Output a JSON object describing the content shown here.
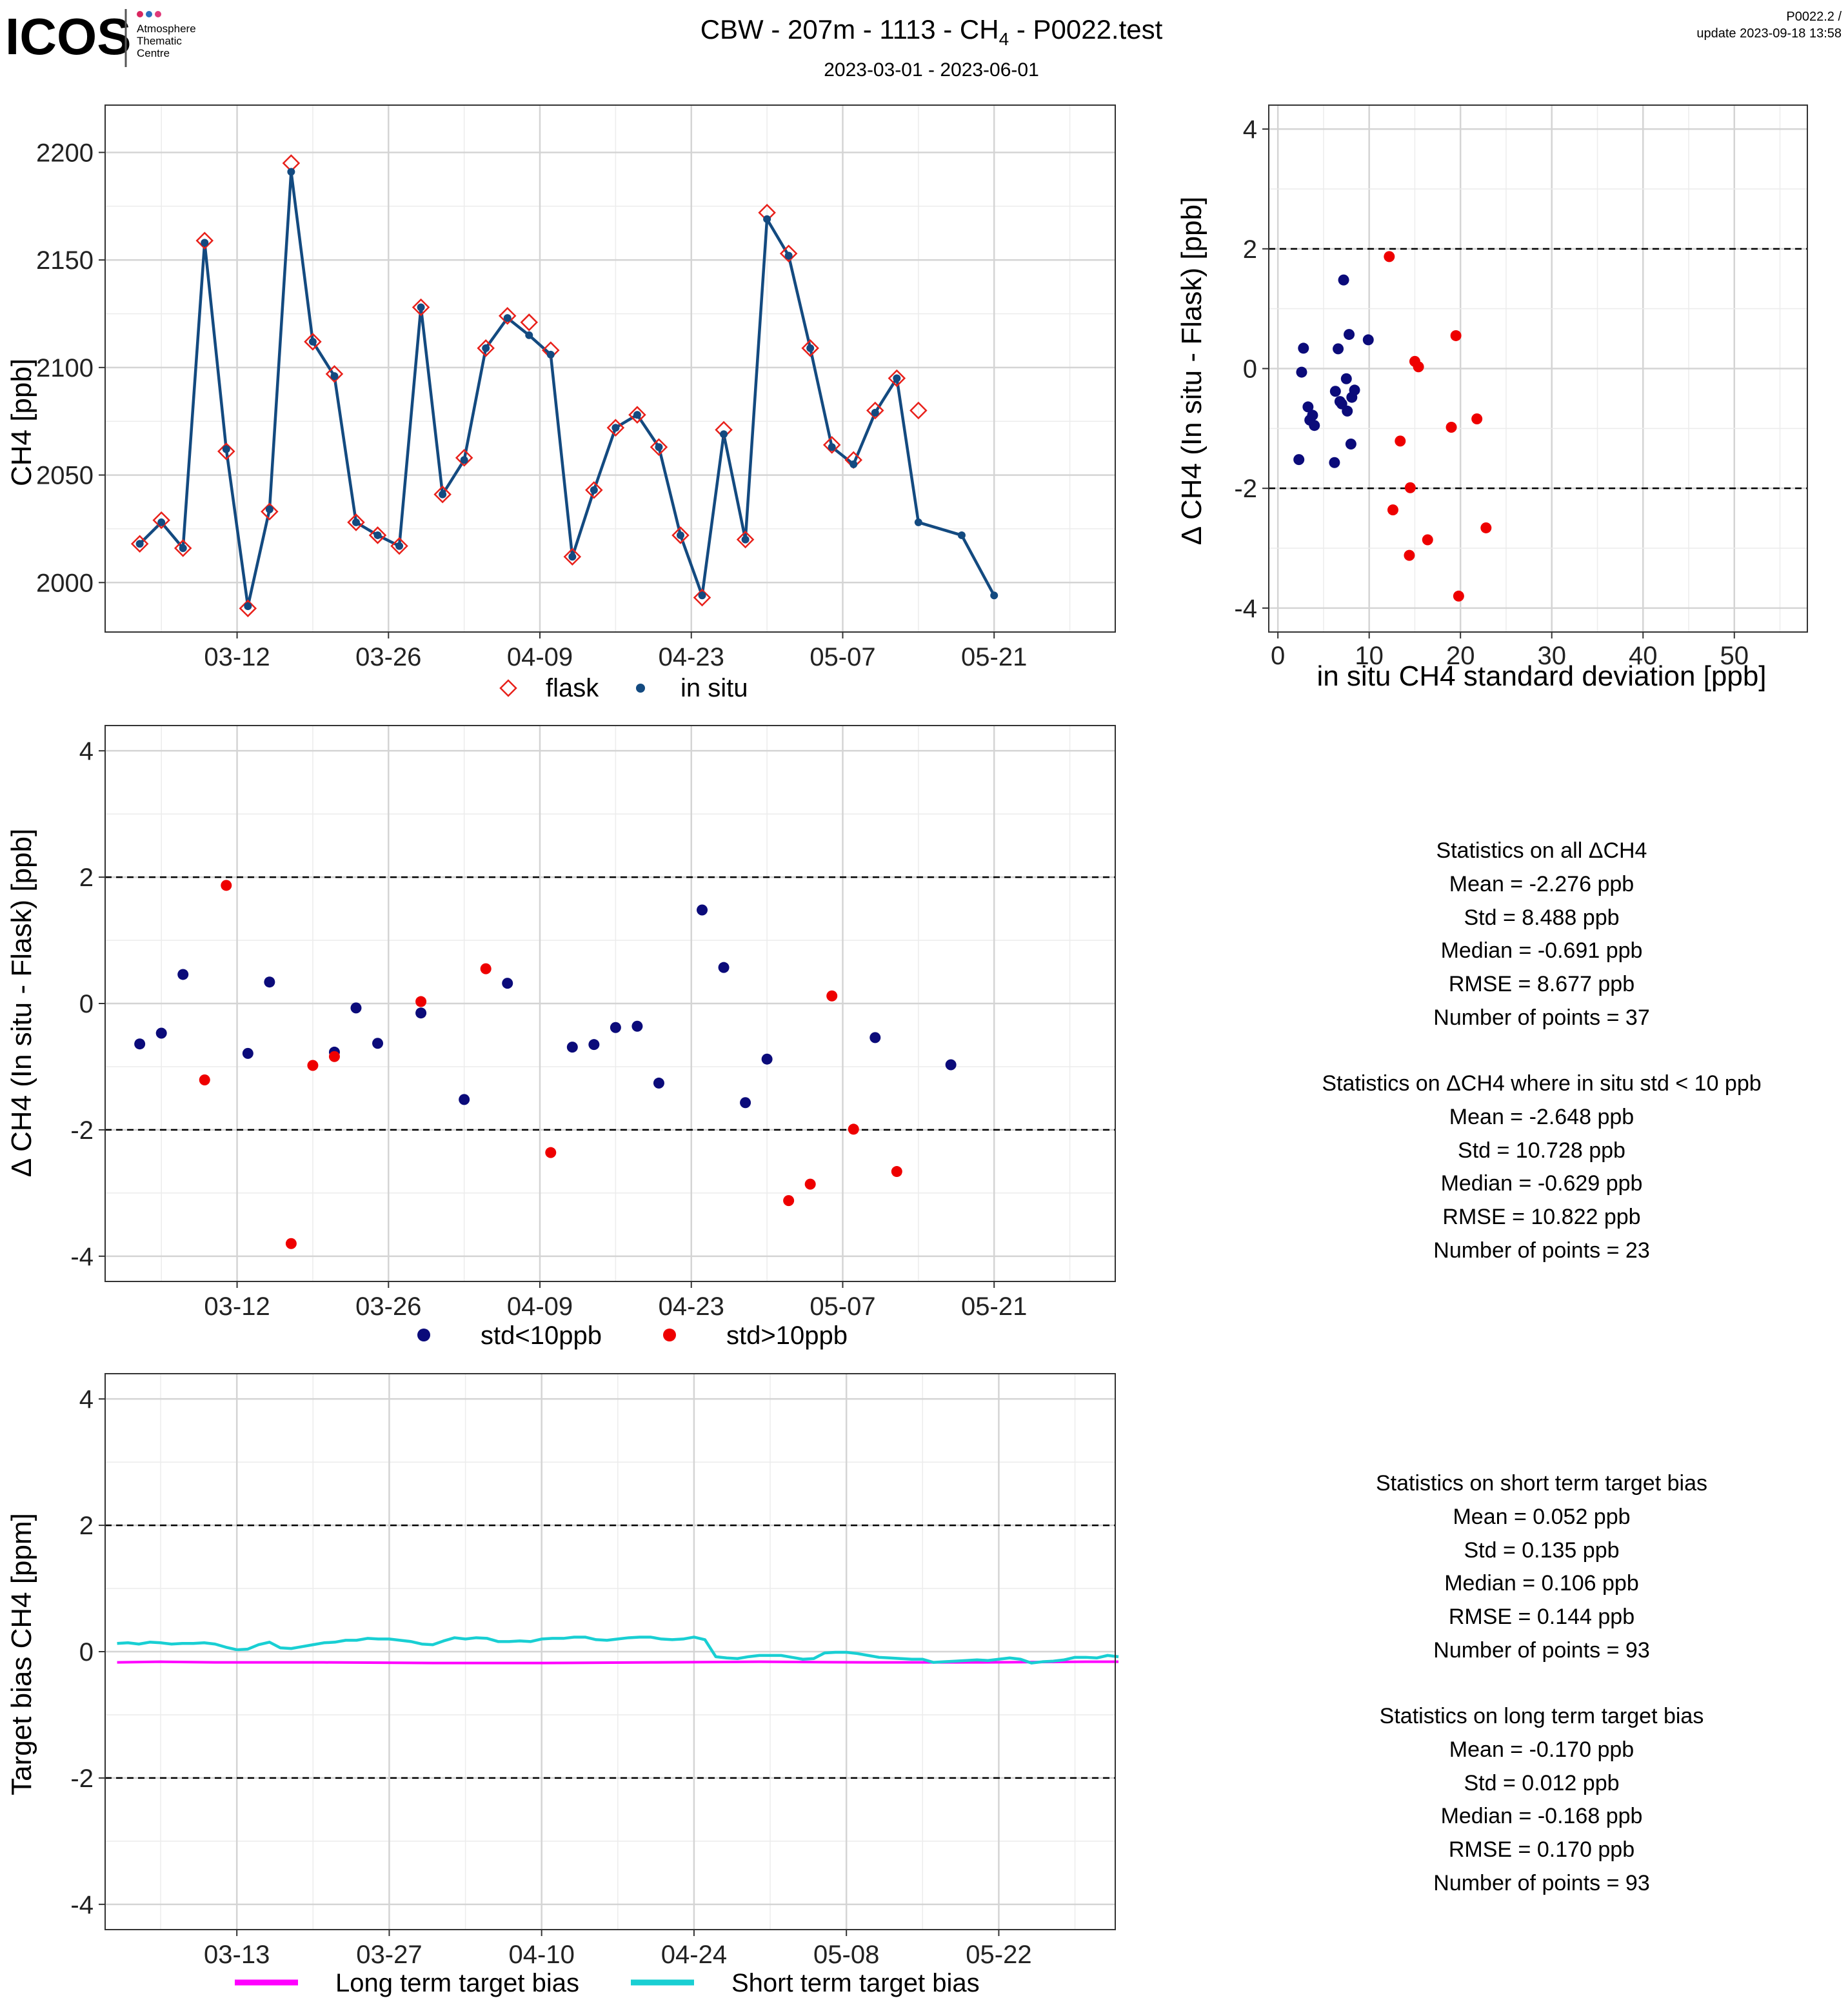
{
  "header": {
    "logo_text": "ICOS",
    "logo_sub": [
      "Atmosphere",
      "Thematic",
      "Centre"
    ],
    "title": "CBW - 207m - 1113 - CH",
    "title_sub": "4",
    "title_tail": " - P0022.test",
    "date_range": "2023-03-01 - 2023-06-01",
    "version": "P0022.2 /",
    "update": "update  2023-09-18 13:58"
  },
  "colors": {
    "insitu_line": "#134a80",
    "insitu_point": "#134a80",
    "flask": "#e8201a",
    "std_low": "#0b0b7a",
    "std_high": "#ee0000",
    "long_term": "#ff00ff",
    "short_term": "#19cfd3"
  },
  "chart_data": [
    {
      "id": "timeseries",
      "type": "line",
      "ylabel": "CH4 [ppb]",
      "xlabel": "",
      "x_ticks": [
        "03-12",
        "03-26",
        "04-09",
        "04-23",
        "05-07",
        "05-21"
      ],
      "x_tick_days": [
        11,
        25,
        39,
        53,
        67,
        81
      ],
      "xlim_days": [
        -1.2,
        92.2
      ],
      "ylim": [
        1977,
        2222
      ],
      "y_ticks": [
        2000,
        2050,
        2100,
        2150,
        2200
      ],
      "legend": [
        "flask",
        "in situ"
      ],
      "series": [
        {
          "name": "in situ",
          "x_days": [
            2,
            4,
            6,
            8,
            10,
            12,
            14,
            16,
            18,
            20,
            22,
            24,
            26,
            28,
            30,
            32,
            34,
            36,
            38,
            40,
            42,
            44,
            46,
            48,
            50,
            52,
            54,
            56,
            58,
            60,
            62,
            64,
            66,
            68,
            70,
            72,
            74,
            78,
            81
          ],
          "values": [
            2018,
            2028,
            2016,
            2158,
            2062,
            1989,
            2034,
            2191,
            2112,
            2096,
            2028,
            2022,
            2017,
            2128,
            2041,
            2057,
            2109,
            2123,
            2115,
            2106,
            2012,
            2043,
            2072,
            2078,
            2063,
            2022,
            1994,
            2069,
            2020,
            2169,
            2152,
            2109,
            2063,
            2055,
            2079,
            2095,
            2028,
            2022,
            1994
          ]
        },
        {
          "name": "flask",
          "x_days": [
            2,
            4,
            6,
            8,
            10,
            12,
            14,
            16,
            18,
            20,
            22,
            24,
            26,
            28,
            30,
            32,
            34,
            36,
            38,
            40,
            42,
            44,
            46,
            48,
            50,
            52,
            54,
            56,
            58,
            60,
            62,
            64,
            66,
            68,
            70,
            72,
            74
          ],
          "values": [
            2018,
            2029,
            2016,
            2159,
            2061,
            1988,
            2033,
            2195,
            2112,
            2097,
            2028,
            2022,
            2017,
            2128,
            2041,
            2058,
            2109,
            2124,
            2121,
            2108,
            2012,
            2043,
            2072,
            2078,
            2063,
            2022,
            1993,
            2071,
            2020,
            2172,
            2153,
            2109,
            2064,
            2057,
            2080,
            2095,
            2080
          ]
        }
      ]
    },
    {
      "id": "scatter_std",
      "type": "scatter",
      "xlabel": "in situ CH4 standard deviation [ppb]",
      "ylabel": "Δ CH4 (In situ - Flask) [ppb]",
      "xlim": [
        -1,
        58
      ],
      "ylim": [
        -4.4,
        4.4
      ],
      "x_ticks": [
        0,
        10,
        20,
        30,
        40,
        50
      ],
      "y_ticks": [
        -4,
        -2,
        0,
        2,
        4
      ],
      "hlines": [
        2,
        -2
      ],
      "series": [
        {
          "name": "std<10ppb",
          "x": [
            2.3,
            2.6,
            2.8,
            3.3,
            3.5,
            3.8,
            4.0,
            6.2,
            6.3,
            6.6,
            6.8,
            7.0,
            7.2,
            7.5,
            7.6,
            7.8,
            8.0,
            8.1,
            8.4,
            9.9
          ],
          "y": [
            -1.52,
            -0.06,
            0.34,
            -0.64,
            -0.86,
            -0.78,
            -0.95,
            -1.57,
            -0.38,
            0.33,
            -0.55,
            -0.59,
            1.48,
            -0.17,
            -0.71,
            0.57,
            -1.26,
            -0.48,
            -0.36,
            0.48
          ]
        },
        {
          "name": "std>10ppb",
          "x": [
            12.2,
            12.6,
            13.4,
            14.4,
            14.5,
            15.0,
            15.4,
            16.4,
            19.0,
            19.5,
            19.8,
            21.8,
            22.8
          ],
          "y": [
            1.87,
            -2.36,
            -1.21,
            -3.12,
            -1.99,
            0.12,
            0.03,
            -2.86,
            -0.98,
            0.55,
            -3.8,
            -0.84,
            -2.66
          ]
        }
      ]
    },
    {
      "id": "delta_timeseries",
      "type": "scatter",
      "ylabel": "Δ CH4 (In situ - Flask) [ppb]",
      "xlabel": "",
      "x_ticks": [
        "03-12",
        "03-26",
        "04-09",
        "04-23",
        "05-07",
        "05-21"
      ],
      "x_tick_days": [
        11,
        25,
        39,
        53,
        67,
        81
      ],
      "xlim_days": [
        -1.2,
        92.2
      ],
      "ylim": [
        -4.4,
        4.4
      ],
      "y_ticks": [
        -4,
        -2,
        0,
        2,
        4
      ],
      "hlines": [
        2,
        -2
      ],
      "legend": [
        "std<10ppb",
        "std>10ppb"
      ],
      "series": [
        {
          "name": "std<10ppb",
          "x_days": [
            2,
            4,
            6,
            12,
            14,
            20,
            22,
            24,
            28,
            32,
            36,
            42,
            44,
            46,
            48,
            50,
            54,
            56,
            58,
            60,
            70,
            77
          ],
          "values": [
            -0.64,
            -0.47,
            0.46,
            -0.79,
            0.34,
            -0.77,
            -0.07,
            -0.63,
            -0.15,
            -1.52,
            0.32,
            -0.69,
            -0.65,
            -0.38,
            -0.36,
            -1.26,
            1.48,
            0.57,
            -1.57,
            -0.88,
            -0.54,
            -0.97
          ]
        },
        {
          "name": "std>10ppb",
          "x_days": [
            8,
            10,
            16,
            18,
            20,
            28,
            34,
            40,
            62,
            64,
            66,
            68,
            72
          ],
          "values": [
            -1.21,
            1.87,
            -3.8,
            -0.98,
            -0.84,
            0.03,
            0.55,
            -2.36,
            -3.12,
            -2.86,
            0.12,
            -1.99,
            -2.66
          ]
        }
      ]
    },
    {
      "id": "target_bias",
      "type": "line",
      "ylabel": "Target bias CH4 [ppm]",
      "xlabel": "",
      "x_ticks": [
        "03-13",
        "03-27",
        "04-10",
        "04-24",
        "05-08",
        "05-22"
      ],
      "x_tick_days": [
        12,
        26,
        40,
        54,
        68,
        82
      ],
      "xlim_days": [
        -0.1,
        92.7
      ],
      "ylim": [
        -4.4,
        4.4
      ],
      "y_ticks": [
        -4,
        -2,
        0,
        2,
        4
      ],
      "hlines": [
        2,
        -2
      ],
      "legend": [
        "Long term target bias",
        "Short term target bias"
      ],
      "series": [
        {
          "name": "Short term target bias",
          "x_days": [
            1,
            2,
            3,
            4,
            5,
            6,
            7,
            8,
            9,
            10,
            11,
            12,
            13,
            14,
            15,
            16,
            17,
            18,
            19,
            20,
            21,
            22,
            23,
            24,
            25,
            26,
            27,
            28,
            29,
            30,
            31,
            32,
            33,
            34,
            35,
            36,
            37,
            38,
            39,
            40,
            41,
            42,
            43,
            44,
            45,
            46,
            47,
            48,
            49,
            50,
            51,
            52,
            53,
            54,
            55,
            56,
            57,
            58,
            59,
            60,
            61,
            62,
            63,
            64,
            65,
            66,
            67,
            68,
            69,
            70,
            71,
            72,
            73,
            74,
            75,
            76,
            77,
            78,
            79,
            80,
            81,
            82,
            83,
            84,
            85,
            86,
            87,
            88,
            89,
            90,
            91,
            92,
            93
          ],
          "values": [
            0.13,
            0.14,
            0.12,
            0.15,
            0.14,
            0.12,
            0.13,
            0.13,
            0.14,
            0.12,
            0.07,
            0.03,
            0.04,
            0.11,
            0.15,
            0.06,
            0.05,
            0.08,
            0.11,
            0.14,
            0.15,
            0.18,
            0.18,
            0.21,
            0.2,
            0.2,
            0.18,
            0.16,
            0.12,
            0.11,
            0.17,
            0.22,
            0.2,
            0.22,
            0.21,
            0.16,
            0.16,
            0.17,
            0.16,
            0.2,
            0.21,
            0.21,
            0.23,
            0.23,
            0.19,
            0.18,
            0.2,
            0.22,
            0.23,
            0.23,
            0.2,
            0.19,
            0.2,
            0.23,
            0.19,
            -0.08,
            -0.1,
            -0.11,
            -0.08,
            -0.06,
            -0.06,
            -0.06,
            -0.09,
            -0.12,
            -0.11,
            -0.02,
            -0.01,
            -0.01,
            -0.03,
            -0.06,
            -0.09,
            -0.1,
            -0.11,
            -0.12,
            -0.12,
            -0.17,
            -0.16,
            -0.15,
            -0.14,
            -0.13,
            -0.14,
            -0.12,
            -0.1,
            -0.12,
            -0.18,
            -0.16,
            -0.15,
            -0.13,
            -0.09,
            -0.09,
            -0.1,
            -0.06,
            -0.08
          ]
        },
        {
          "name": "Long term target bias",
          "x_days": [
            1,
            5,
            10,
            20,
            30,
            40,
            50,
            60,
            70,
            80,
            90,
            93
          ],
          "values": [
            -0.17,
            -0.16,
            -0.17,
            -0.17,
            -0.18,
            -0.18,
            -0.17,
            -0.16,
            -0.17,
            -0.17,
            -0.16,
            -0.16
          ]
        }
      ]
    }
  ],
  "stats_panel_1": {
    "title_all": "Statistics on all ΔCH4",
    "all": [
      "Mean =  -2.276 ppb",
      "Std =  8.488 ppb",
      "Median =  -0.691 ppb",
      "RMSE =  8.677 ppb",
      "Number of points =  37"
    ],
    "title_filtered": "Statistics on ΔCH4 where in situ std < 10 ppb",
    "filtered": [
      "Mean =  -2.648 ppb",
      "Std =  10.728 ppb",
      "Median =  -0.629 ppb",
      "RMSE =  10.822 ppb",
      "Number of points =  23"
    ]
  },
  "stats_panel_2": {
    "title_short": "Statistics on short term target bias",
    "short": [
      "Mean =  0.052 ppb",
      "Std =  0.135 ppb",
      "Median =  0.106 ppb",
      "RMSE =  0.144 ppb",
      "Number of points =  93"
    ],
    "title_long": "Statistics on long term target bias",
    "long": [
      "Mean =  -0.170 ppb",
      "Std =  0.012 ppb",
      "Median =  -0.168 ppb",
      "RMSE =  0.170 ppb",
      "Number of points =  93"
    ]
  }
}
